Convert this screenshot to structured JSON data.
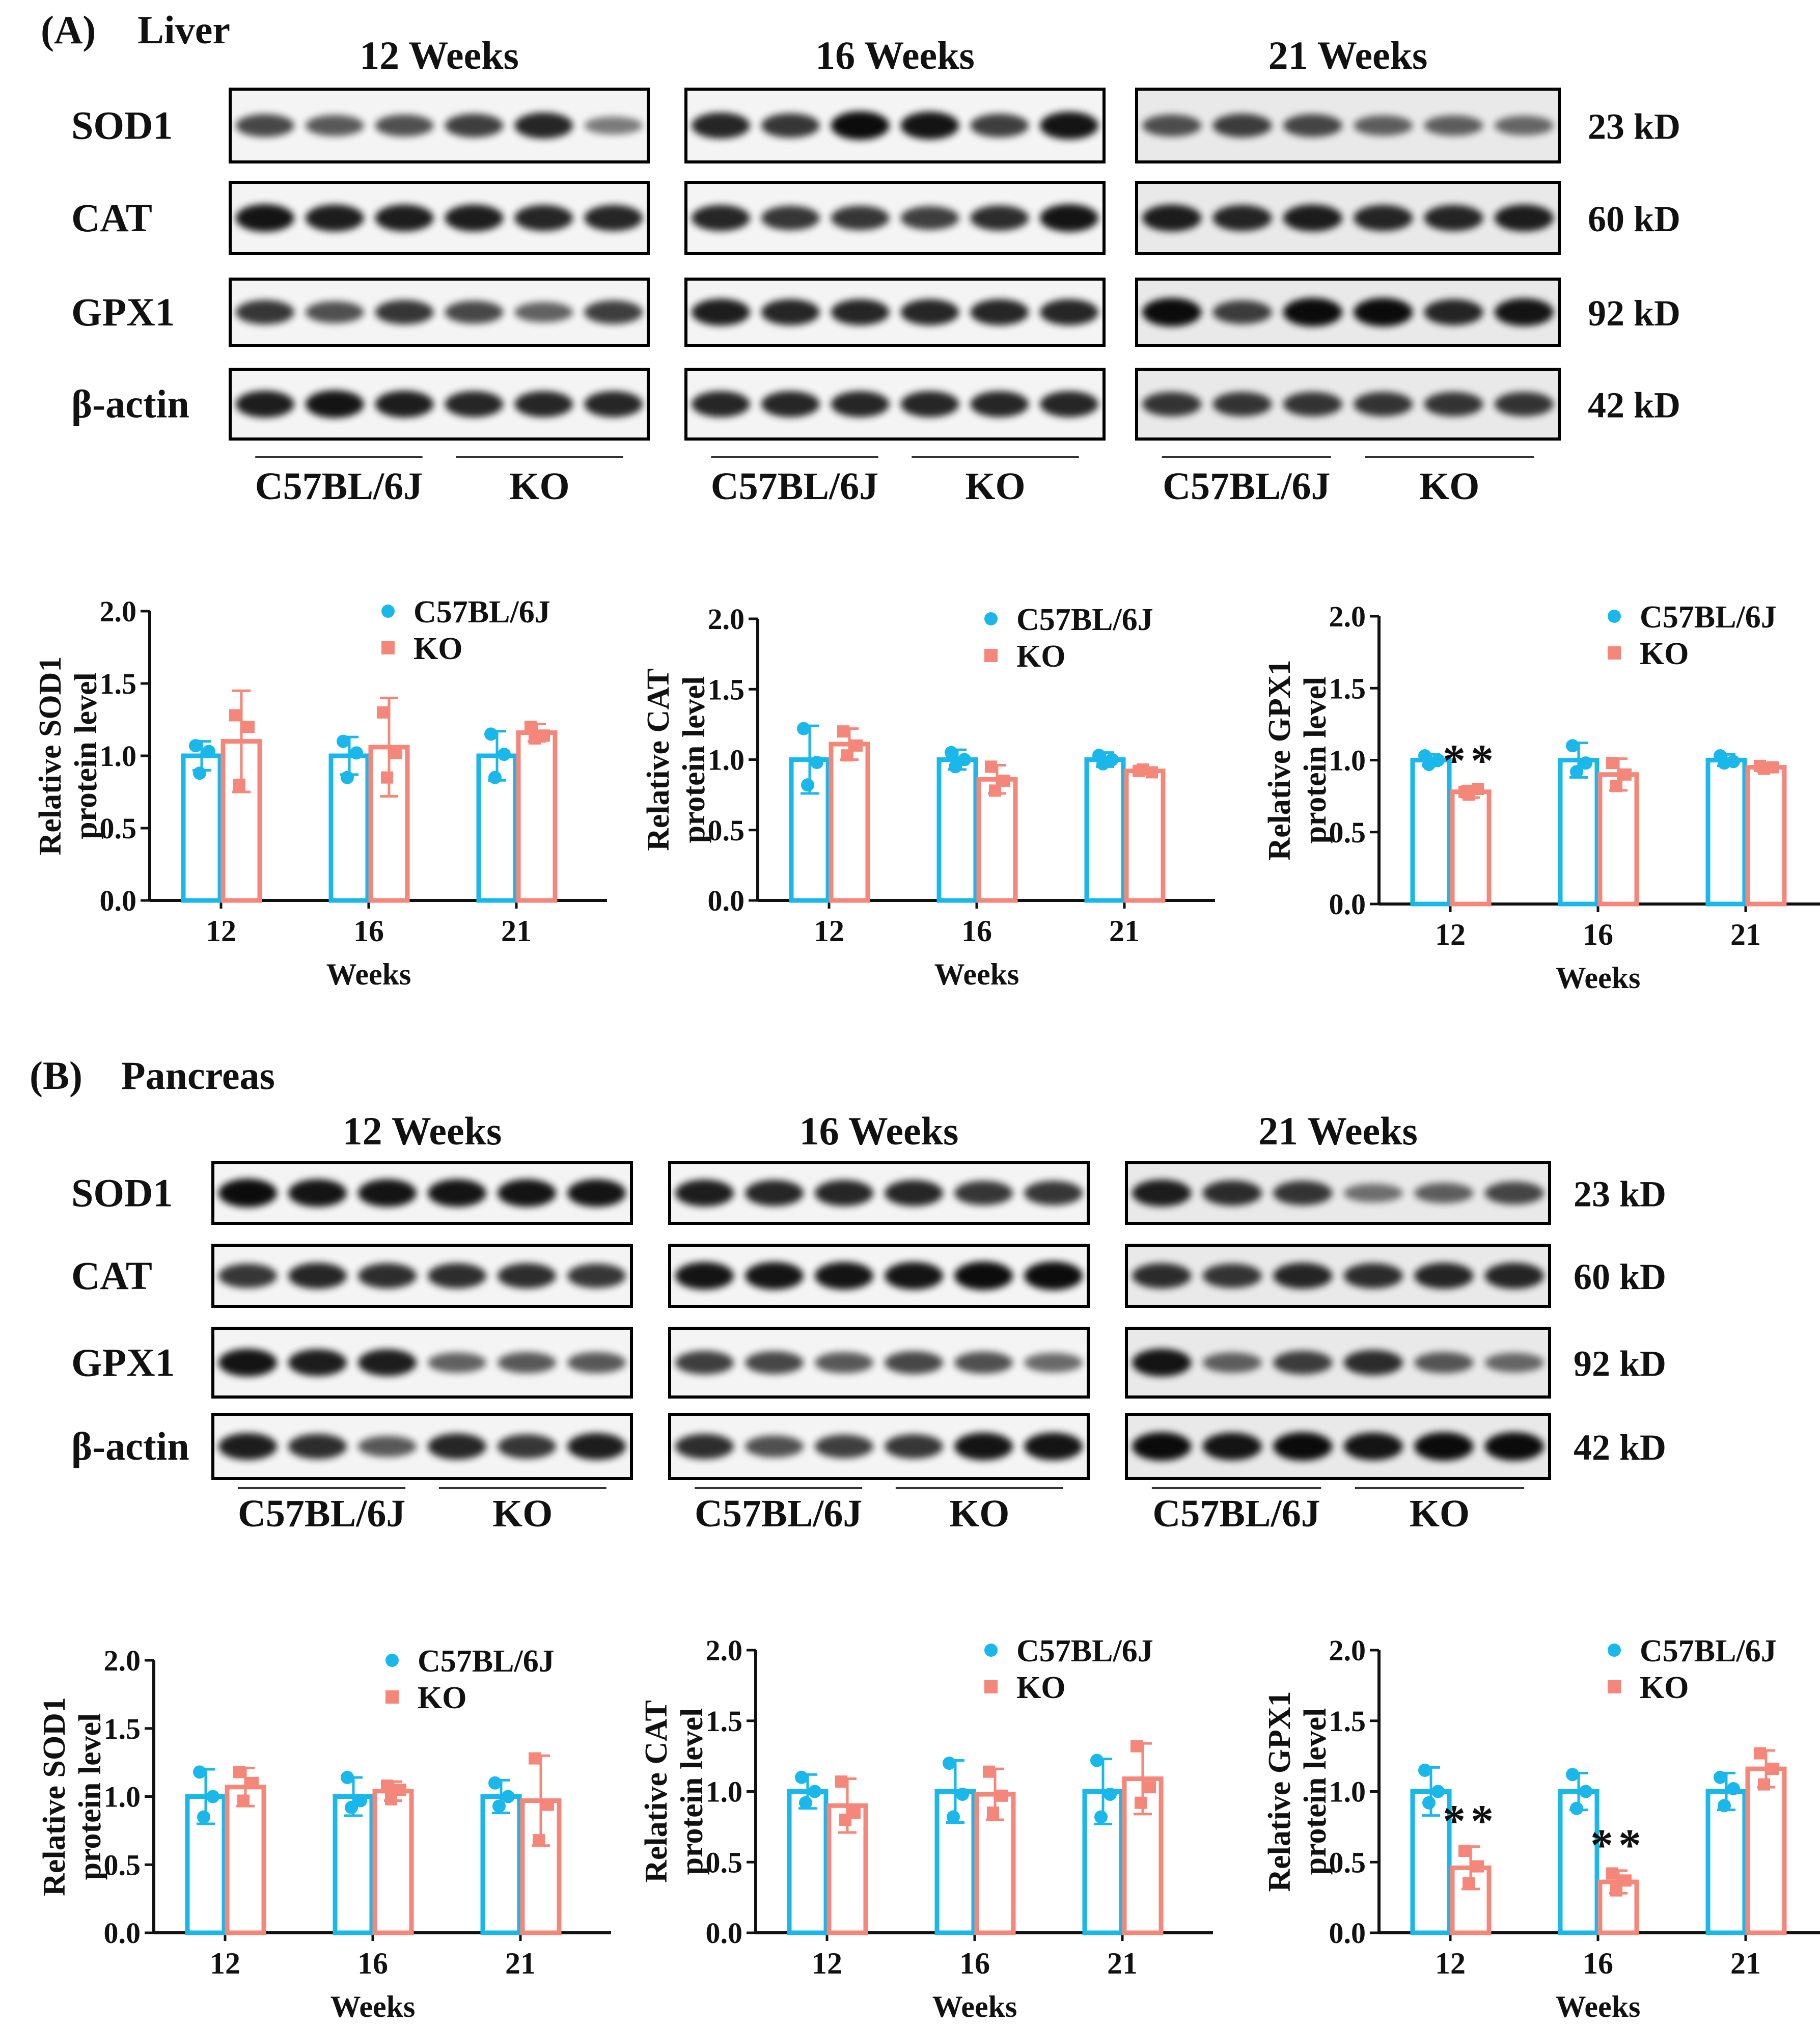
{
  "colors": {
    "wt": "#1ab7ea",
    "ko": "#f4877a",
    "ink": "#111111"
  },
  "sections": [
    {
      "label": "(A)",
      "tissue": "Liver",
      "blots": {
        "timepoints": [
          "12 Weeks",
          "16 Weeks",
          "21 Weeks"
        ],
        "proteins": [
          "SOD1",
          "CAT",
          "GPX1",
          "β-actin"
        ],
        "sizes": [
          "23 kD",
          "60 kD",
          "92 kD",
          "42 kD"
        ],
        "groups": [
          "C57BL/6J",
          "KO"
        ]
      }
    },
    {
      "label": "(B)",
      "tissue": "Pancreas",
      "blots": {
        "timepoints": [
          "12 Weeks",
          "16 Weeks",
          "21 Weeks"
        ],
        "proteins": [
          "SOD1",
          "CAT",
          "GPX1",
          "β-actin"
        ],
        "sizes": [
          "23 kD",
          "60 kD",
          "92 kD",
          "42 kD"
        ],
        "groups": [
          "C57BL/6J",
          "KO"
        ]
      }
    }
  ],
  "chart_data": [
    {
      "type": "bar",
      "section": "Liver",
      "ylabel": [
        "Relative SOD1",
        "protein level"
      ],
      "xlabel": "Weeks",
      "categories": [
        "12",
        "16",
        "21"
      ],
      "ylim": [
        0,
        2.0
      ],
      "yticks": [
        "0.0",
        "0.5",
        "1.0",
        "1.5",
        "2.0"
      ],
      "legend": [
        "C57BL/6J",
        "KO"
      ],
      "series": [
        {
          "name": "C57BL/6J",
          "values": [
            1.0,
            1.0,
            1.0
          ],
          "err": [
            0.1,
            0.13,
            0.17
          ],
          "points": [
            [
              1.07,
              0.88,
              1.03
            ],
            [
              1.1,
              0.85,
              1.02
            ],
            [
              1.15,
              0.85,
              1.01
            ]
          ]
        },
        {
          "name": "KO",
          "values": [
            1.1,
            1.06,
            1.16
          ],
          "err": [
            0.35,
            0.34,
            0.06
          ],
          "points": [
            [
              1.28,
              0.8,
              1.2
            ],
            [
              1.3,
              0.85,
              1.02
            ],
            [
              1.2,
              1.12,
              1.14
            ]
          ]
        }
      ],
      "annotations": []
    },
    {
      "type": "bar",
      "section": "Liver",
      "ylabel": [
        "Relative CAT",
        "protein level"
      ],
      "xlabel": "Weeks",
      "categories": [
        "12",
        "16",
        "21"
      ],
      "ylim": [
        0,
        2.0
      ],
      "yticks": [
        "0.0",
        "0.5",
        "1.0",
        "1.5",
        "2.0"
      ],
      "legend": [
        "C57BL/6J",
        "KO"
      ],
      "series": [
        {
          "name": "C57BL/6J",
          "values": [
            1.0,
            1.0,
            1.0
          ],
          "err": [
            0.24,
            0.07,
            0.05
          ],
          "points": [
            [
              1.22,
              0.82,
              0.98
            ],
            [
              1.05,
              0.95,
              1.0
            ],
            [
              1.03,
              0.97,
              1.0
            ]
          ]
        },
        {
          "name": "KO",
          "values": [
            1.11,
            0.86,
            0.92
          ],
          "err": [
            0.11,
            0.1,
            0.02
          ],
          "points": [
            [
              1.2,
              1.03,
              1.1
            ],
            [
              0.95,
              0.78,
              0.85
            ],
            [
              0.92,
              0.93,
              0.91
            ]
          ]
        }
      ],
      "annotations": []
    },
    {
      "type": "bar",
      "section": "Liver",
      "ylabel": [
        "Relative GPX1",
        "protein level"
      ],
      "xlabel": "Weeks",
      "categories": [
        "12",
        "16",
        "21"
      ],
      "ylim": [
        0,
        2.0
      ],
      "yticks": [
        "0.0",
        "0.5",
        "1.0",
        "1.5",
        "2.0"
      ],
      "legend": [
        "C57BL/6J",
        "KO"
      ],
      "series": [
        {
          "name": "C57BL/6J",
          "values": [
            1.0,
            1.0,
            1.0
          ],
          "err": [
            0.04,
            0.12,
            0.04
          ],
          "points": [
            [
              1.03,
              0.97,
              1.0
            ],
            [
              1.1,
              0.92,
              0.98
            ],
            [
              1.03,
              0.98,
              0.99
            ]
          ]
        },
        {
          "name": "KO",
          "values": [
            0.78,
            0.9,
            0.95
          ],
          "err": [
            0.04,
            0.11,
            0.03
          ],
          "points": [
            [
              0.78,
              0.76,
              0.8
            ],
            [
              0.98,
              0.82,
              0.9
            ],
            [
              0.96,
              0.94,
              0.95
            ]
          ]
        }
      ],
      "annotations": [
        {
          "series": "KO",
          "category": "12",
          "text": "**"
        }
      ]
    },
    {
      "type": "bar",
      "section": "Pancreas",
      "ylabel": [
        "Relative SOD1",
        "protein level"
      ],
      "xlabel": "Weeks",
      "categories": [
        "12",
        "16",
        "21"
      ],
      "ylim": [
        0,
        2.0
      ],
      "yticks": [
        "0.0",
        "0.5",
        "1.0",
        "1.5",
        "2.0"
      ],
      "legend": [
        "C57BL/6J",
        "KO"
      ],
      "series": [
        {
          "name": "C57BL/6J",
          "values": [
            1.0,
            1.0,
            1.0
          ],
          "err": [
            0.2,
            0.14,
            0.12
          ],
          "points": [
            [
              1.18,
              0.85,
              1.0
            ],
            [
              1.14,
              0.92,
              0.97
            ],
            [
              1.1,
              0.93,
              1.0
            ]
          ]
        },
        {
          "name": "KO",
          "values": [
            1.07,
            1.04,
            0.97
          ],
          "err": [
            0.14,
            0.07,
            0.33
          ],
          "points": [
            [
              1.18,
              0.97,
              1.1
            ],
            [
              1.08,
              0.98,
              1.05
            ],
            [
              1.28,
              0.68,
              0.94
            ]
          ]
        }
      ],
      "annotations": []
    },
    {
      "type": "bar",
      "section": "Pancreas",
      "ylabel": [
        "Relative CAT",
        "protein level"
      ],
      "xlabel": "Weeks",
      "categories": [
        "12",
        "16",
        "21"
      ],
      "ylim": [
        0,
        2.0
      ],
      "yticks": [
        "0.0",
        "0.5",
        "1.0",
        "1.5",
        "2.0"
      ],
      "legend": [
        "C57BL/6J",
        "KO"
      ],
      "series": [
        {
          "name": "C57BL/6J",
          "values": [
            1.0,
            1.0,
            1.0
          ],
          "err": [
            0.12,
            0.22,
            0.23
          ],
          "points": [
            [
              1.1,
              0.92,
              1.0
            ],
            [
              1.2,
              0.82,
              0.98
            ],
            [
              1.22,
              0.82,
              0.98
            ]
          ]
        },
        {
          "name": "KO",
          "values": [
            0.9,
            0.98,
            1.09
          ],
          "err": [
            0.19,
            0.18,
            0.25
          ],
          "points": [
            [
              1.07,
              0.8,
              0.85
            ],
            [
              1.14,
              0.85,
              0.97
            ],
            [
              1.32,
              0.92,
              1.03
            ]
          ]
        }
      ],
      "annotations": []
    },
    {
      "type": "bar",
      "section": "Pancreas",
      "ylabel": [
        "Relative GPX1",
        "protein level"
      ],
      "xlabel": "Weeks",
      "categories": [
        "12",
        "16",
        "21"
      ],
      "ylim": [
        0,
        2.0
      ],
      "yticks": [
        "0.0",
        "0.5",
        "1.0",
        "1.5",
        "2.0"
      ],
      "legend": [
        "C57BL/6J",
        "KO"
      ],
      "series": [
        {
          "name": "C57BL/6J",
          "values": [
            1.0,
            1.0,
            1.0
          ],
          "err": [
            0.17,
            0.13,
            0.13
          ],
          "points": [
            [
              1.15,
              0.92,
              1.0
            ],
            [
              1.12,
              0.88,
              1.0
            ],
            [
              1.1,
              0.9,
              1.02
            ]
          ]
        },
        {
          "name": "KO",
          "values": [
            0.46,
            0.36,
            1.16
          ],
          "err": [
            0.15,
            0.08,
            0.13
          ],
          "points": [
            [
              0.58,
              0.35,
              0.47
            ],
            [
              0.42,
              0.3,
              0.37
            ],
            [
              1.27,
              1.05,
              1.16
            ]
          ]
        }
      ],
      "annotations": [
        {
          "series": "KO",
          "category": "12",
          "text": "**"
        },
        {
          "series": "KO",
          "category": "16",
          "text": "**"
        }
      ]
    }
  ]
}
